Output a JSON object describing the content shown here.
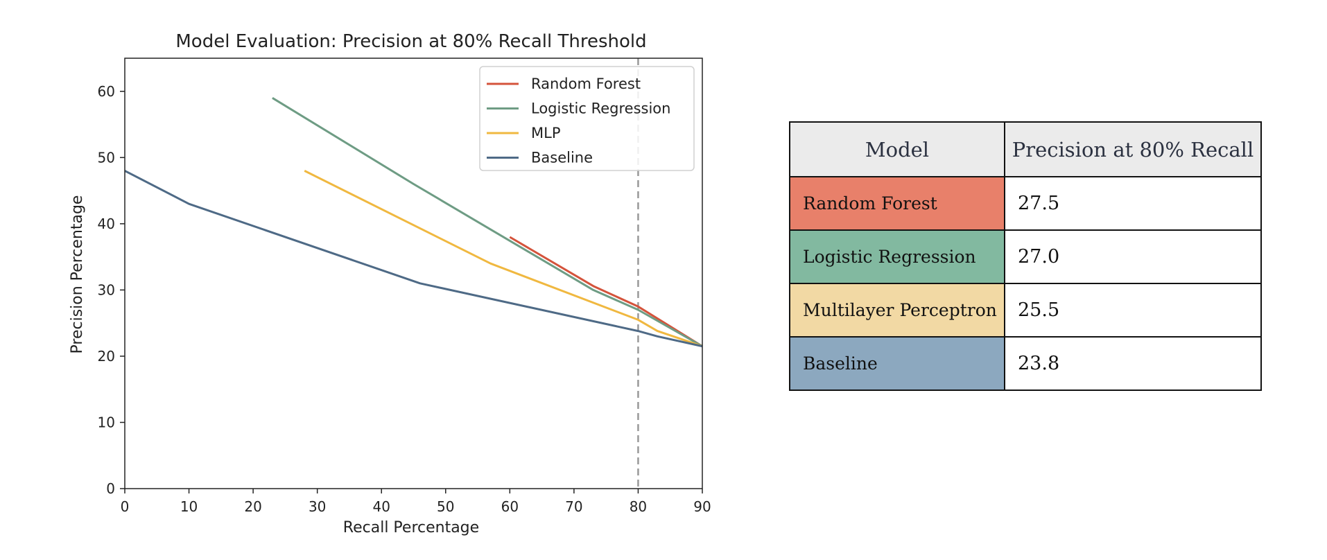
{
  "chart_data": {
    "type": "line",
    "title": "Model Evaluation: Precision at 80% Recall Threshold",
    "xlabel": "Recall Percentage",
    "ylabel": "Precision Percentage",
    "xlim": [
      0,
      90
    ],
    "ylim": [
      0,
      65
    ],
    "xticks": [
      0,
      10,
      20,
      30,
      40,
      50,
      60,
      70,
      80,
      90
    ],
    "yticks": [
      0,
      10,
      20,
      30,
      40,
      50,
      60
    ],
    "grid": false,
    "legend_position": "upper right",
    "threshold_line": {
      "x": 80,
      "style": "dashed",
      "color": "#999999"
    },
    "series": [
      {
        "name": "Random Forest",
        "color": "#d4533b",
        "points": [
          [
            60,
            38
          ],
          [
            73,
            30.6
          ],
          [
            80,
            27.5
          ],
          [
            90,
            21.5
          ]
        ]
      },
      {
        "name": "Logistic Regression",
        "color": "#6e9c84",
        "points": [
          [
            23,
            59
          ],
          [
            45,
            46
          ],
          [
            73,
            30
          ],
          [
            80,
            27
          ],
          [
            90,
            21.5
          ]
        ]
      },
      {
        "name": "MLP",
        "color": "#f0b840",
        "points": [
          [
            28,
            48
          ],
          [
            57,
            34
          ],
          [
            80,
            25.5
          ],
          [
            83,
            23.8
          ],
          [
            90,
            21.5
          ]
        ]
      },
      {
        "name": "Baseline",
        "color": "#4e6a86",
        "points": [
          [
            0,
            48
          ],
          [
            10,
            43
          ],
          [
            46,
            31
          ],
          [
            80,
            23.8
          ],
          [
            83,
            23
          ],
          [
            90,
            21.5
          ]
        ]
      }
    ]
  },
  "table": {
    "headers": [
      "Model",
      "Precision at 80% Recall"
    ],
    "rows": [
      {
        "model": "Random Forest",
        "value": "27.5",
        "color": "#e8806a"
      },
      {
        "model": "Logistic Regression",
        "value": "27.0",
        "color": "#82b9a0"
      },
      {
        "model": "Multilayer Perceptron",
        "value": "25.5",
        "color": "#f2d9a4"
      },
      {
        "model": "Baseline",
        "value": "23.8",
        "color": "#8ca8bf"
      }
    ]
  }
}
